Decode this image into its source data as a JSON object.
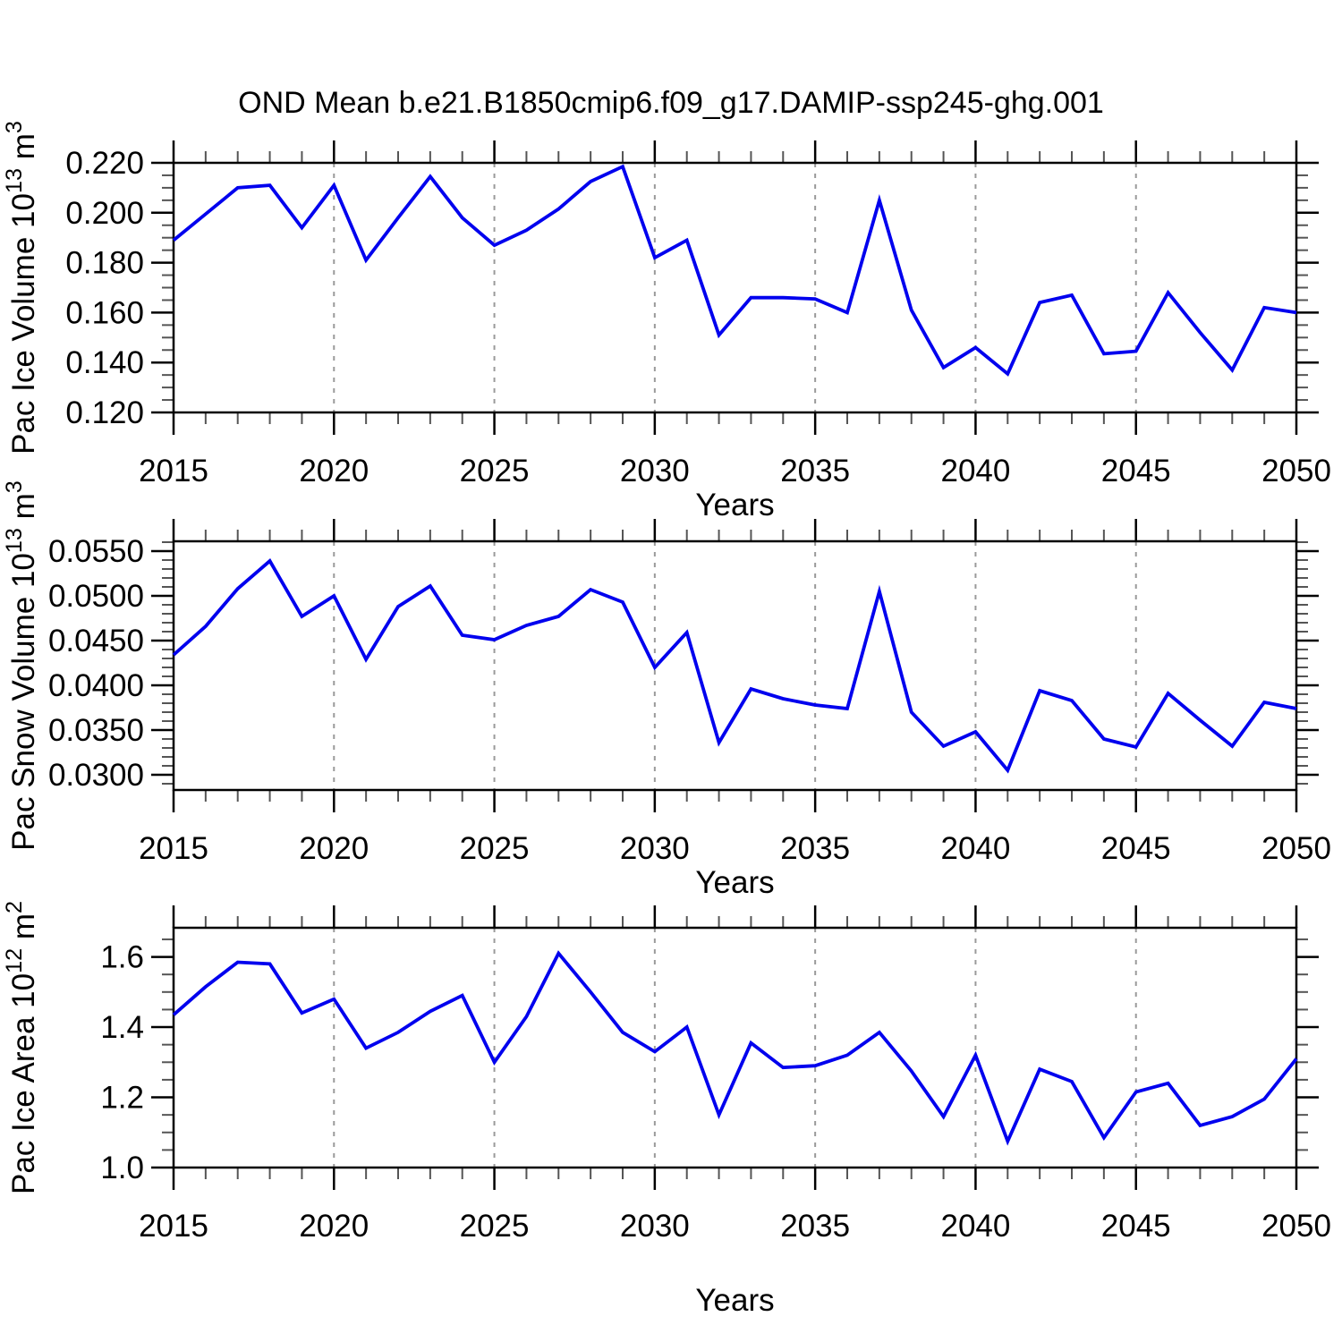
{
  "title": "OND Mean b.e21.B1850cmip6.f09_g17.DAMIP-ssp245-ghg.001",
  "line_color": "#0000ee",
  "grid_color": "#9a9a9a",
  "frame_color": "#000000",
  "years": [
    2015,
    2016,
    2017,
    2018,
    2019,
    2020,
    2021,
    2022,
    2023,
    2024,
    2025,
    2026,
    2027,
    2028,
    2029,
    2030,
    2031,
    2032,
    2033,
    2034,
    2035,
    2036,
    2037,
    2038,
    2039,
    2040,
    2041,
    2042,
    2043,
    2044,
    2045,
    2046,
    2047,
    2048,
    2049,
    2050
  ],
  "chart_data": [
    {
      "type": "line",
      "xlabel": "Years",
      "ylabel": "Pac Ice Volume 10^13 m^3",
      "ylabel_parts": [
        {
          "t": "Pac Ice Volume 10"
        },
        {
          "sup": "13"
        },
        {
          "t": " m"
        },
        {
          "sup": "3"
        }
      ],
      "ylim": [
        0.12,
        0.22
      ],
      "ytick_values": [
        0.12,
        0.14,
        0.16,
        0.18,
        0.2,
        0.22
      ],
      "ytick_labels": [
        "0.120",
        "0.140",
        "0.160",
        "0.180",
        "0.200",
        "0.220"
      ],
      "ytick_minor_step": 0.005,
      "xticks_major": [
        2015,
        2020,
        2025,
        2030,
        2035,
        2040,
        2045,
        2050
      ],
      "xtick_minor_step": 1,
      "grid_lines_x": [
        2020,
        2025,
        2030,
        2035,
        2040,
        2045
      ],
      "values": [
        0.189,
        0.1995,
        0.21,
        0.211,
        0.194,
        0.211,
        0.181,
        0.198,
        0.2145,
        0.198,
        0.187,
        0.193,
        0.2015,
        0.2125,
        0.2185,
        0.182,
        0.189,
        0.151,
        0.166,
        0.166,
        0.1655,
        0.16,
        0.205,
        0.161,
        0.138,
        0.146,
        0.1355,
        0.164,
        0.167,
        0.1435,
        0.1445,
        0.168,
        0.152,
        0.137,
        0.162,
        0.16
      ]
    },
    {
      "type": "line",
      "xlabel": "Years",
      "ylabel": "Pac Snow Volume 10^13 m^3",
      "ylabel_parts": [
        {
          "t": "Pac Snow Volume 10"
        },
        {
          "sup": "13"
        },
        {
          "t": " m"
        },
        {
          "sup": "3"
        }
      ],
      "ylim": [
        0.0283,
        0.0561
      ],
      "ytick_values": [
        0.03,
        0.035,
        0.04,
        0.045,
        0.05,
        0.055
      ],
      "ytick_labels": [
        "0.0300",
        "0.0350",
        "0.0400",
        "0.0450",
        "0.0500",
        "0.0550"
      ],
      "ytick_minor_step": 0.001,
      "xticks_major": [
        2015,
        2020,
        2025,
        2030,
        2035,
        2040,
        2045,
        2050
      ],
      "xtick_minor_step": 1,
      "grid_lines_x": [
        2020,
        2025,
        2030,
        2035,
        2040,
        2045
      ],
      "values": [
        0.0434,
        0.0466,
        0.0508,
        0.0539,
        0.0477,
        0.05,
        0.0429,
        0.0488,
        0.0511,
        0.0456,
        0.0451,
        0.0467,
        0.0477,
        0.0507,
        0.0493,
        0.042,
        0.0459,
        0.0336,
        0.0396,
        0.0385,
        0.0378,
        0.0374,
        0.0505,
        0.037,
        0.0332,
        0.0348,
        0.0305,
        0.0394,
        0.0383,
        0.034,
        0.0331,
        0.0391,
        0.0361,
        0.0332,
        0.0381,
        0.0374
      ]
    },
    {
      "type": "line",
      "xlabel": "Years",
      "ylabel": "Pac Ice Area 10^12 m^2",
      "ylabel_parts": [
        {
          "t": "Pac Ice Area 10"
        },
        {
          "sup": "12"
        },
        {
          "t": " m"
        },
        {
          "sup": "2"
        }
      ],
      "ylim": [
        1.0,
        1.683
      ],
      "ytick_values": [
        1.0,
        1.2,
        1.4,
        1.6
      ],
      "ytick_labels": [
        "1.0",
        "1.2",
        "1.4",
        "1.6"
      ],
      "ytick_minor_step": 0.05,
      "xticks_major": [
        2015,
        2020,
        2025,
        2030,
        2035,
        2040,
        2045,
        2050
      ],
      "xtick_minor_step": 1,
      "grid_lines_x": [
        2020,
        2025,
        2030,
        2035,
        2040,
        2045
      ],
      "values": [
        1.435,
        1.515,
        1.585,
        1.58,
        1.44,
        1.48,
        1.34,
        1.385,
        1.445,
        1.49,
        1.3,
        1.43,
        1.61,
        1.5,
        1.385,
        1.33,
        1.4,
        1.15,
        1.355,
        1.285,
        1.29,
        1.32,
        1.385,
        1.275,
        1.145,
        1.32,
        1.075,
        1.28,
        1.245,
        1.085,
        1.215,
        1.24,
        1.12,
        1.145,
        1.195,
        1.31
      ]
    }
  ]
}
